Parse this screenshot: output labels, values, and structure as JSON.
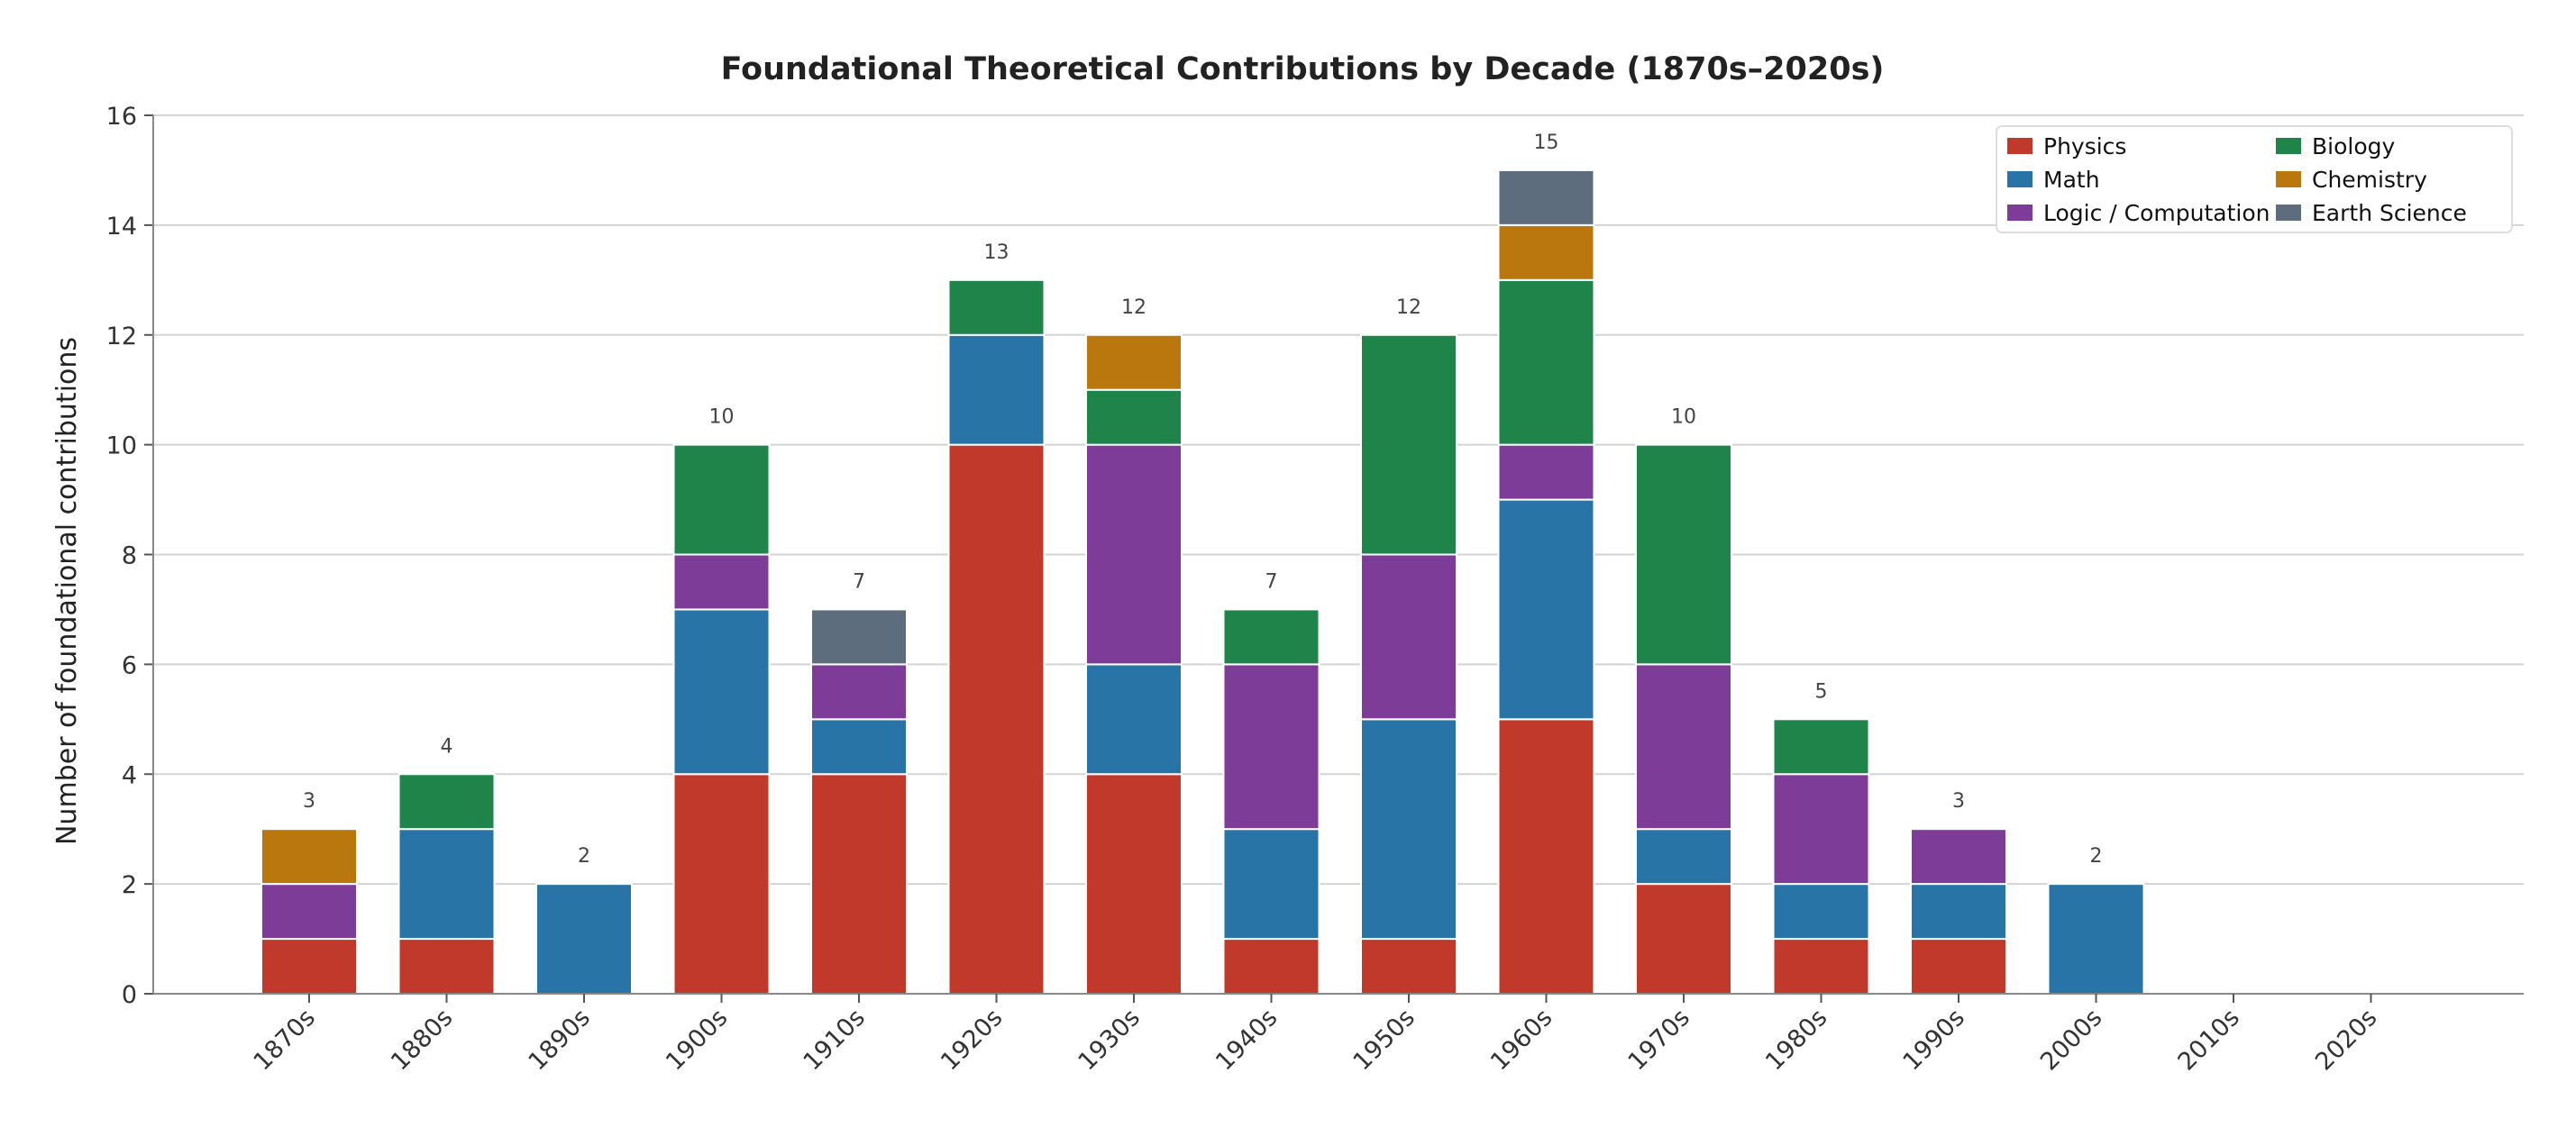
{
  "chart_data": {
    "type": "bar",
    "stacked": true,
    "title": "Foundational Theoretical Contributions by Decade (1870s–2020s)",
    "xlabel": "",
    "ylabel": "Number of foundational contributions",
    "ylim": [
      0,
      16
    ],
    "yticks": [
      0,
      2,
      4,
      6,
      8,
      10,
      12,
      14,
      16
    ],
    "grid": "horizontal",
    "legend_position": "top-right",
    "categories": [
      "1870s",
      "1880s",
      "1890s",
      "1900s",
      "1910s",
      "1920s",
      "1930s",
      "1940s",
      "1950s",
      "1960s",
      "1970s",
      "1980s",
      "1990s",
      "2000s",
      "2010s",
      "2020s"
    ],
    "series": [
      {
        "name": "Physics",
        "color": "#c0392b",
        "values": [
          1,
          1,
          0,
          4,
          4,
          10,
          4,
          1,
          1,
          5,
          2,
          1,
          1,
          0,
          0,
          0
        ]
      },
      {
        "name": "Math",
        "color": "#2874a6",
        "values": [
          0,
          2,
          2,
          3,
          1,
          2,
          2,
          2,
          4,
          4,
          1,
          1,
          1,
          2,
          0,
          0
        ]
      },
      {
        "name": "Logic / Computation",
        "color": "#7d3c98",
        "values": [
          1,
          0,
          0,
          1,
          1,
          0,
          4,
          3,
          3,
          1,
          3,
          2,
          1,
          0,
          0,
          0
        ]
      },
      {
        "name": "Biology",
        "color": "#1e8449",
        "values": [
          0,
          1,
          0,
          2,
          0,
          1,
          1,
          1,
          4,
          3,
          4,
          1,
          0,
          0,
          0,
          0
        ]
      },
      {
        "name": "Chemistry",
        "color": "#b9770e",
        "values": [
          1,
          0,
          0,
          0,
          0,
          0,
          1,
          0,
          0,
          1,
          0,
          0,
          0,
          0,
          0,
          0
        ]
      },
      {
        "name": "Earth Science",
        "color": "#5d6d7e",
        "values": [
          0,
          0,
          0,
          0,
          1,
          0,
          0,
          0,
          0,
          1,
          0,
          0,
          0,
          0,
          0,
          0
        ]
      }
    ],
    "totals": [
      3,
      4,
      2,
      10,
      7,
      13,
      12,
      7,
      12,
      15,
      10,
      5,
      3,
      2,
      0,
      0
    ]
  }
}
